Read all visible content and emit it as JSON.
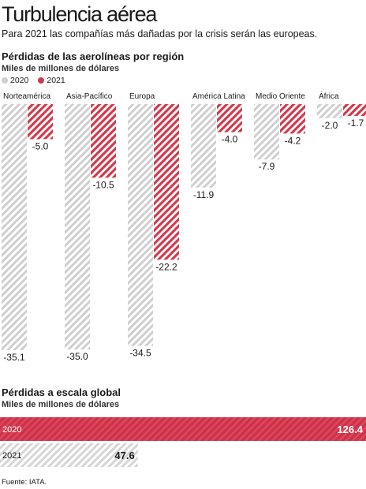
{
  "header": {
    "title": "Turbulencia aérea",
    "subtitle": "Para 2021 las compañías más dañadas por la crisis serán las europeas."
  },
  "regional": {
    "title": "Pérdidas de las aerolíneas por región",
    "unit": "Miles de millones de dólares"
  },
  "global": {
    "title": "Pérdidas a escala global",
    "unit": "Miles de millones de dólares"
  },
  "legend": [
    {
      "label": "2020",
      "color": "#cfcfcf"
    },
    {
      "label": "2021",
      "color": "#d13a4e"
    }
  ],
  "source": "Fuente: IATA.",
  "colors": {
    "gray": "#c8c8c8",
    "red": "#d13a4e",
    "text": "#1a1a1a"
  },
  "chart_data": [
    {
      "type": "bar",
      "categories": [
        "Norteamérica",
        "Asia-Pacífico",
        "Europa",
        "América Latina",
        "Medio Oriente",
        "África"
      ],
      "series": [
        {
          "name": "2020",
          "values": [
            -35.1,
            -35.0,
            -34.5,
            -11.9,
            -7.9,
            -2.0
          ],
          "labels": [
            "-35.1",
            "-35.0",
            "-34.5",
            "-11.9",
            "-7.9",
            "-2.0"
          ]
        },
        {
          "name": "2021",
          "values": [
            -5.0,
            -10.5,
            -22.2,
            -4.0,
            -4.2,
            -1.7
          ],
          "labels": [
            "-5.0",
            "-10.5",
            "-22.2",
            "-4.0",
            "-4.2",
            "-1.7"
          ]
        }
      ],
      "ylim": [
        -36,
        0
      ]
    },
    {
      "type": "bar",
      "orientation": "horizontal",
      "categories": [
        "2020",
        "2021"
      ],
      "values": [
        126.4,
        47.6
      ],
      "labels": [
        "126.4",
        "47.6"
      ],
      "xlim": [
        0,
        126.4
      ]
    }
  ]
}
